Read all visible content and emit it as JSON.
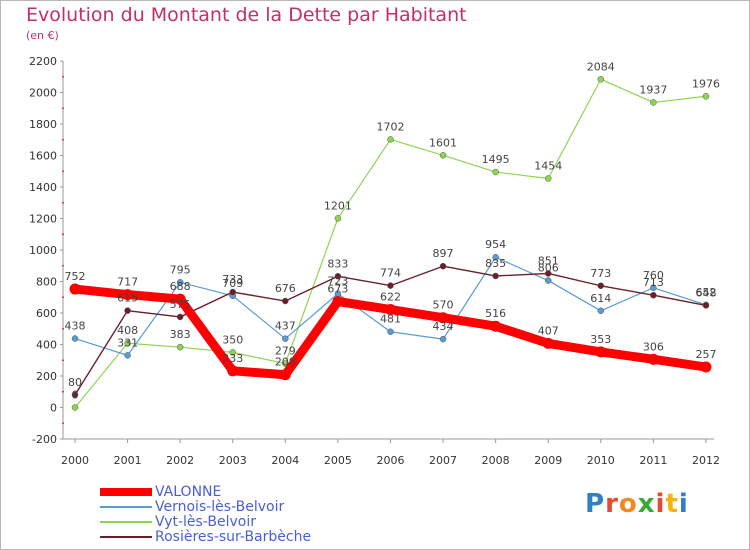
{
  "chart_data": {
    "type": "line",
    "title": "Evolution du Montant de la Dette par Habitant",
    "subtitle": "(en €)",
    "x": [
      2000,
      2001,
      2002,
      2003,
      2004,
      2005,
      2006,
      2007,
      2008,
      2009,
      2010,
      2011,
      2012
    ],
    "ylim": [
      -200,
      2200
    ],
    "yticks": [
      -200,
      0,
      200,
      400,
      600,
      800,
      1000,
      1200,
      1400,
      1600,
      1800,
      2000,
      2200
    ],
    "grid": false,
    "legend_position": "bottom-left",
    "series": [
      {
        "name": "VALONNE",
        "color": "#ff0000",
        "values": [
          752,
          717,
          688,
          233,
          208,
          673,
          622,
          570,
          516,
          407,
          353,
          306,
          257
        ]
      },
      {
        "name": "Vernois-lès-Belvoir",
        "color": "#5b9bd5",
        "values": [
          438,
          331,
          795,
          709,
          437,
          723,
          481,
          434,
          954,
          806,
          614,
          760,
          652
        ]
      },
      {
        "name": "Vyt-lès-Belvoir",
        "color": "#8ed450",
        "values": [
          0,
          408,
          383,
          350,
          279,
          1201,
          1702,
          1601,
          1495,
          1454,
          2084,
          1937,
          1976
        ]
      },
      {
        "name": "Rosières-sur-Barbèche",
        "color": "#6b1f2a",
        "values": [
          80,
          615,
          575,
          733,
          676,
          833,
          774,
          897,
          835,
          851,
          773,
          713,
          648
        ]
      }
    ]
  },
  "logo": {
    "text": "Proxiti"
  }
}
